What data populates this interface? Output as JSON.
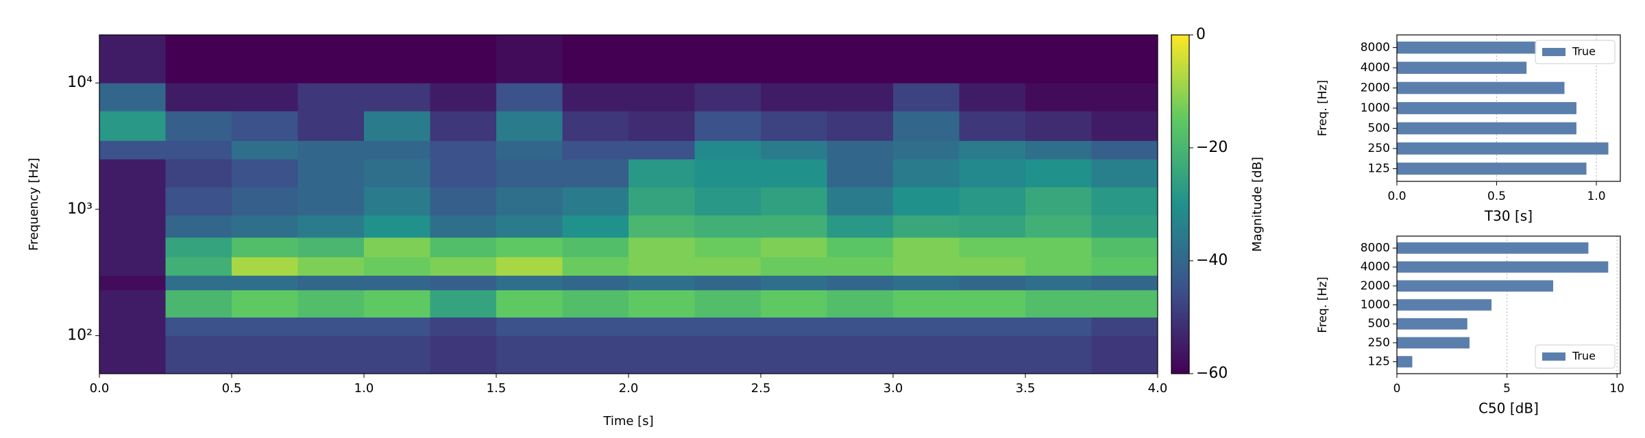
{
  "chart_data": [
    {
      "type": "heatmap",
      "xlabel": "Time [s]",
      "ylabel": "Frequency [Hz]",
      "x_edges": [
        0,
        0.25,
        0.5,
        0.75,
        1,
        1.25,
        1.5,
        1.75,
        2,
        2.25,
        2.5,
        2.75,
        3,
        3.25,
        3.5,
        3.75,
        4
      ],
      "y_edges": [
        50,
        100,
        140,
        230,
        300,
        420,
        600,
        900,
        1500,
        2500,
        3500,
        6000,
        10000,
        24000
      ],
      "values": [
        [
          -55,
          -48,
          -48,
          -48,
          -48,
          -50,
          -48,
          -48,
          -48,
          -48,
          -48,
          -48,
          -48,
          -48,
          -48,
          -50
        ],
        [
          -55,
          -45,
          -45,
          -45,
          -45,
          -48,
          -45,
          -45,
          -45,
          -45,
          -45,
          -45,
          -45,
          -45,
          -45,
          -48
        ],
        [
          -55,
          -20,
          -15,
          -18,
          -15,
          -25,
          -15,
          -18,
          -15,
          -18,
          -15,
          -18,
          -15,
          -15,
          -18,
          -18
        ],
        [
          -58,
          -38,
          -38,
          -40,
          -40,
          -42,
          -38,
          -40,
          -38,
          -40,
          -38,
          -40,
          -38,
          -40,
          -38,
          -40
        ],
        [
          -55,
          -22,
          -8,
          -12,
          -14,
          -12,
          -8,
          -14,
          -12,
          -12,
          -14,
          -14,
          -12,
          -12,
          -14,
          -16
        ],
        [
          -55,
          -25,
          -18,
          -20,
          -12,
          -18,
          -15,
          -18,
          -12,
          -14,
          -12,
          -16,
          -12,
          -14,
          -14,
          -18
        ],
        [
          -55,
          -40,
          -38,
          -35,
          -30,
          -38,
          -35,
          -30,
          -20,
          -22,
          -22,
          -28,
          -24,
          -25,
          -22,
          -26
        ],
        [
          -55,
          -45,
          -42,
          -40,
          -35,
          -42,
          -38,
          -35,
          -25,
          -28,
          -26,
          -35,
          -30,
          -28,
          -24,
          -28
        ],
        [
          -55,
          -48,
          -45,
          -40,
          -38,
          -45,
          -42,
          -42,
          -28,
          -30,
          -30,
          -40,
          -35,
          -32,
          -30,
          -34
        ],
        [
          -45,
          -45,
          -38,
          -40,
          -40,
          -45,
          -40,
          -45,
          -45,
          -32,
          -35,
          -40,
          -38,
          -35,
          -38,
          -42
        ],
        [
          -28,
          -42,
          -45,
          -50,
          -35,
          -50,
          -35,
          -50,
          -52,
          -45,
          -48,
          -50,
          -40,
          -50,
          -52,
          -55
        ],
        [
          -40,
          -55,
          -55,
          -50,
          -50,
          -55,
          -45,
          -55,
          -55,
          -52,
          -55,
          -55,
          -48,
          -55,
          -58,
          -58
        ],
        [
          -55,
          -60,
          -60,
          -60,
          -60,
          -60,
          -58,
          -60,
          -60,
          -60,
          -60,
          -60,
          -60,
          -60,
          -60,
          -60
        ]
      ],
      "xlim": [
        0,
        4
      ],
      "xticks": [
        {
          "value": 0,
          "label": "0.0"
        },
        0.5,
        {
          "value": 1,
          "label": "1.0"
        },
        1.5,
        {
          "value": 2,
          "label": "2.0"
        },
        2.5,
        {
          "value": 3,
          "label": "3.0"
        },
        3.5,
        {
          "value": 4,
          "label": "4.0"
        }
      ],
      "ylim": [
        50,
        24000
      ],
      "log_y": true,
      "yticks": [
        {
          "value": 100,
          "label": "10²"
        },
        {
          "value": 1000,
          "label": "10³"
        },
        {
          "value": 10000,
          "label": "10⁴"
        }
      ],
      "colorbar": {
        "label": "Magnitude [dB]",
        "lim": [
          -60,
          0
        ],
        "ticks": [
          0,
          {
            "value": -20,
            "label": "−20"
          },
          {
            "value": -40,
            "label": "−40"
          },
          {
            "value": -60,
            "label": "−60"
          }
        ],
        "colormap": [
          "#440154",
          "#3b528b",
          "#21918c",
          "#5ec962",
          "#fde725"
        ]
      }
    },
    {
      "type": "barh",
      "xlabel": "T30 [s]",
      "ylabel": "Freq. [Hz]",
      "categories": [
        "125",
        "250",
        "500",
        "1000",
        "2000",
        "4000",
        "8000"
      ],
      "series": [
        {
          "name": "True",
          "color": "#5b7fad",
          "values": [
            0.95,
            1.06,
            0.9,
            0.9,
            0.84,
            0.65,
            0.7
          ]
        }
      ],
      "xlim": [
        0,
        1.12
      ],
      "xticks": [
        {
          "value": 0,
          "label": "0.0"
        },
        0.5,
        {
          "value": 1,
          "label": "1.0"
        }
      ],
      "grid": true,
      "legend": "upper right"
    },
    {
      "type": "barh",
      "xlabel": "C50 [dB]",
      "ylabel": "Freq. [Hz]",
      "categories": [
        "125",
        "250",
        "500",
        "1000",
        "2000",
        "4000",
        "8000"
      ],
      "series": [
        {
          "name": "True",
          "color": "#5b7fad",
          "values": [
            0.7,
            3.3,
            3.2,
            4.3,
            7.1,
            9.6,
            8.7
          ]
        }
      ],
      "xlim": [
        0,
        10.15
      ],
      "xticks": [
        0,
        5,
        10
      ],
      "grid": true,
      "legend": "lower right"
    }
  ]
}
